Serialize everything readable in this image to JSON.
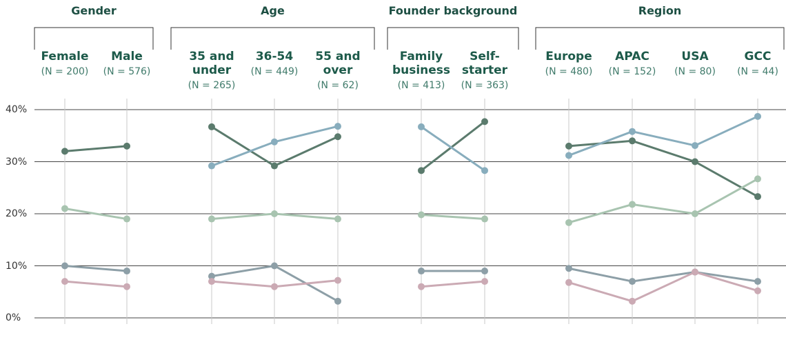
{
  "chart_data": {
    "type": "line",
    "ylim": [
      0,
      40
    ],
    "yticks": [
      {
        "value": 0,
        "label": "0%"
      },
      {
        "value": 10,
        "label": "10%"
      },
      {
        "value": 20,
        "label": "20%"
      },
      {
        "value": 30,
        "label": "30%"
      },
      {
        "value": 40,
        "label": "40%"
      }
    ],
    "groups": [
      {
        "title": "Gender",
        "categories": [
          "Female",
          "Male"
        ],
        "n_labels": [
          "(N = 200)",
          "(N = 576)"
        ],
        "series": [
          {
            "color": "#5b7b6d",
            "values": [
              32,
              33
            ]
          },
          {
            "color": "#a8c4b0",
            "values": [
              21,
              19
            ]
          },
          {
            "color": "#8d9fa7",
            "values": [
              10,
              9
            ]
          },
          {
            "color": "#cbaab4",
            "values": [
              7,
              6
            ]
          }
        ]
      },
      {
        "title": "Age",
        "categories": [
          "35 and under",
          "36-54",
          "55 and over"
        ],
        "n_labels": [
          "(N = 265)",
          "(N = 449)",
          "(N = 62)"
        ],
        "series": [
          {
            "color": "#5b7b6d",
            "values": [
              36.7,
              29.2,
              34.8
            ]
          },
          {
            "color": "#88adbd",
            "values": [
              29.2,
              33.8,
              36.8
            ]
          },
          {
            "color": "#a8c4b0",
            "values": [
              19,
              20,
              19
            ]
          },
          {
            "color": "#8d9fa7",
            "values": [
              8,
              10,
              3.2
            ]
          },
          {
            "color": "#cbaab4",
            "values": [
              7,
              6,
              7.2
            ]
          }
        ]
      },
      {
        "title": "Founder background",
        "categories": [
          "Family business",
          "Self-starter"
        ],
        "n_labels": [
          "(N = 413)",
          "(N = 363)"
        ],
        "series": [
          {
            "color": "#5b7b6d",
            "values": [
              28.3,
              37.7
            ]
          },
          {
            "color": "#88adbd",
            "values": [
              36.7,
              28.3
            ]
          },
          {
            "color": "#a8c4b0",
            "values": [
              19.8,
              19
            ]
          },
          {
            "color": "#8d9fa7",
            "values": [
              9,
              9
            ]
          },
          {
            "color": "#cbaab4",
            "values": [
              6,
              7
            ]
          }
        ]
      },
      {
        "title": "Region",
        "categories": [
          "Europe",
          "APAC",
          "USA",
          "GCC"
        ],
        "n_labels": [
          "(N = 480)",
          "(N = 152)",
          "(N = 80)",
          "(N = 44)"
        ],
        "series": [
          {
            "color": "#5b7b6d",
            "values": [
              33,
              34,
              30,
              23.3
            ]
          },
          {
            "color": "#88adbd",
            "values": [
              31.2,
              35.8,
              33.1,
              38.7
            ]
          },
          {
            "color": "#a8c4b0",
            "values": [
              18.3,
              21.8,
              20,
              26.7
            ]
          },
          {
            "color": "#8d9fa7",
            "values": [
              9.5,
              7,
              8.8,
              7
            ]
          },
          {
            "color": "#cbaab4",
            "values": [
              6.8,
              3.2,
              8.8,
              5.2
            ]
          }
        ]
      }
    ]
  }
}
